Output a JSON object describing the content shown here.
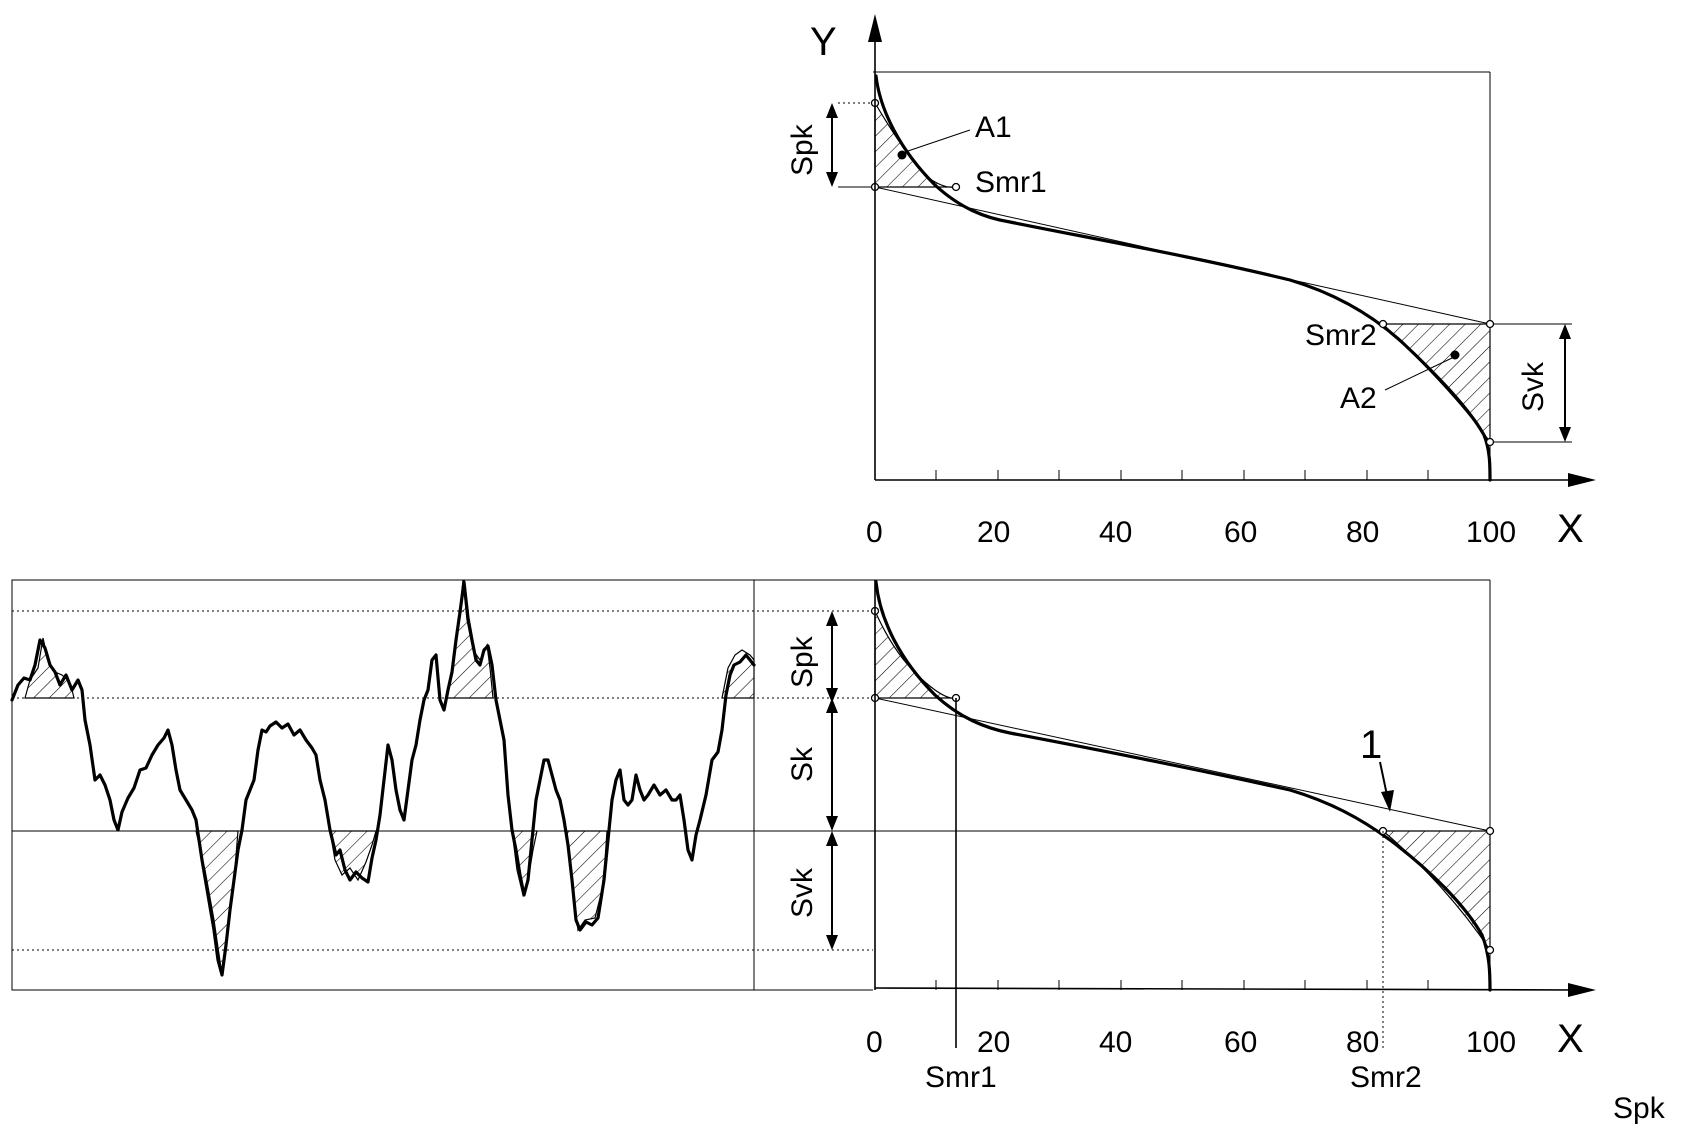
{
  "top_panel": {
    "y_axis_label": "Y",
    "x_axis_label": "X",
    "x_ticks": [
      "0",
      "20",
      "40",
      "60",
      "80",
      "100"
    ],
    "labels": {
      "spk": "Spk",
      "svk": "Svk",
      "a1": "A1",
      "a2": "A2",
      "smr1": "Smr1",
      "smr2": "Smr2"
    }
  },
  "bottom_panel": {
    "x_axis_label": "X",
    "x_ticks": [
      "0",
      "20",
      "40",
      "60",
      "80",
      "100"
    ],
    "labels": {
      "spk": "Spk",
      "sk": "Sk",
      "svk": "Svk",
      "smr1": "Smr1",
      "smr2": "Smr2",
      "ref_1": "1"
    }
  },
  "corner_label": "Spk"
}
